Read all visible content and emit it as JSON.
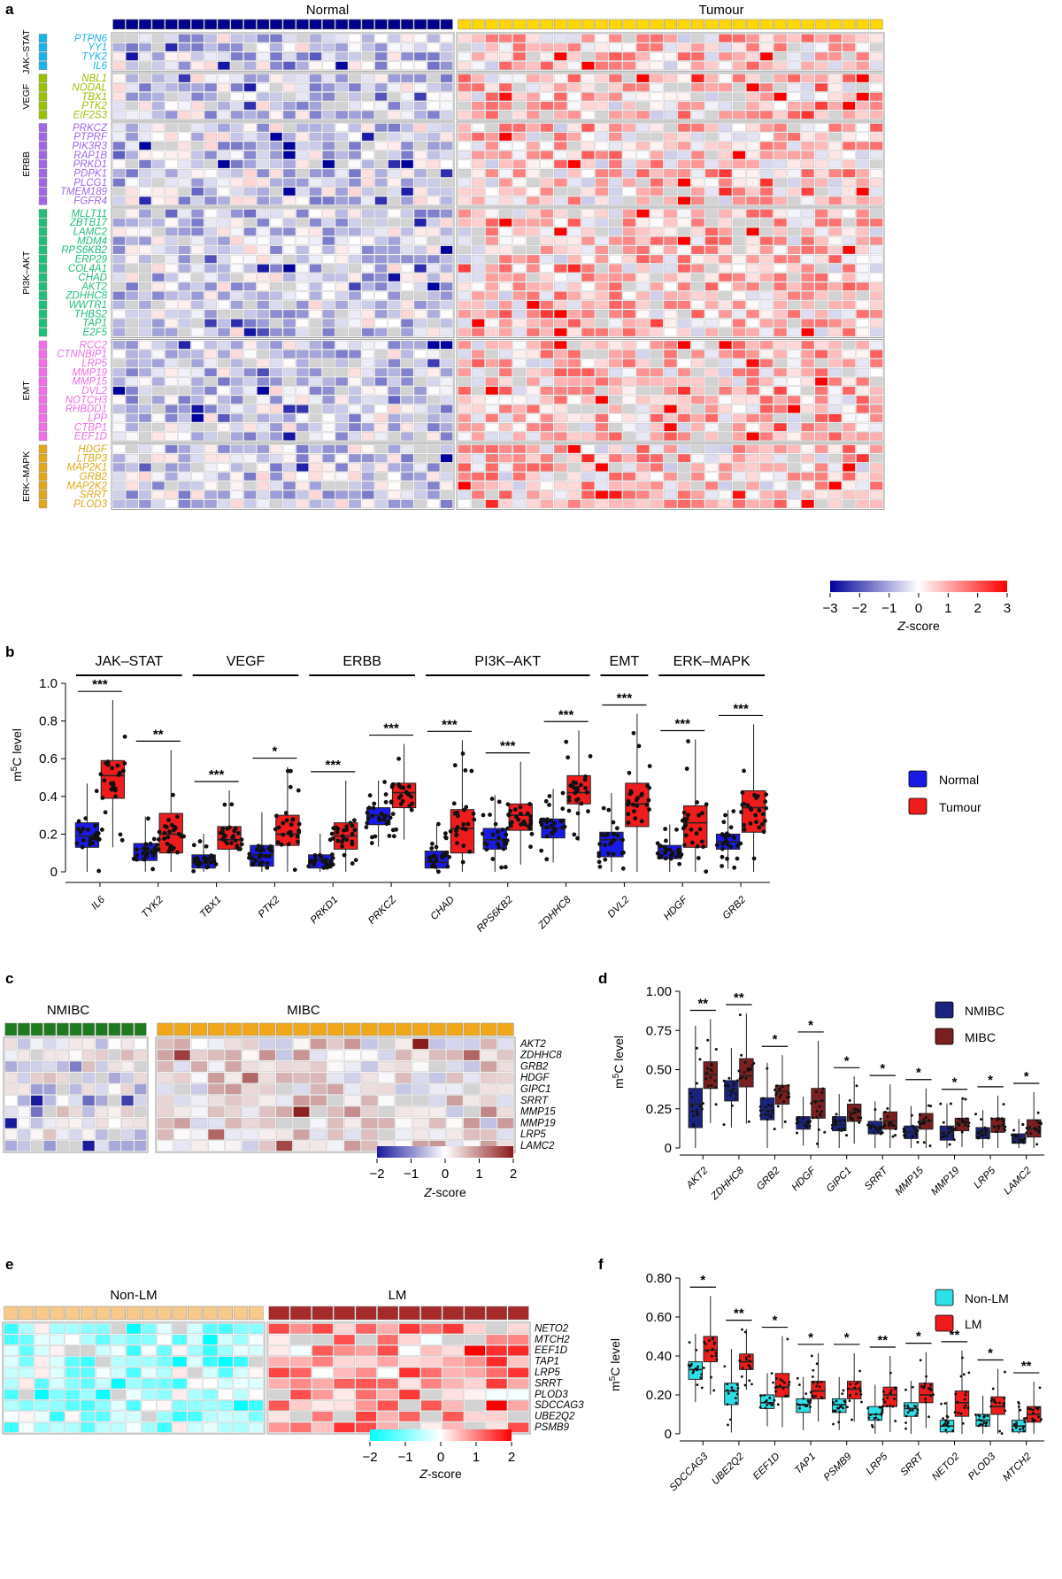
{
  "panels": {
    "a": {
      "letter": "a",
      "columns_left": "Normal",
      "columns_right": "Tumour",
      "n_left": 26,
      "n_right": 31,
      "left_bar_color": "#00008b",
      "right_bar_color": "#ffd700",
      "groups": [
        {
          "name": "JAK–STAT",
          "color": "#1ab2e8",
          "genes": [
            "PTPN6",
            "YY1",
            "TYK2",
            "IL6"
          ]
        },
        {
          "name": "VEGF",
          "color": "#9ac100",
          "genes": [
            "NBL1",
            "NODAL",
            "TBX1",
            "PTK2",
            "EIF2S3"
          ]
        },
        {
          "name": "ERBB",
          "color": "#a066e8",
          "genes": [
            "PRKCZ",
            "PTPRF",
            "PIK3R3",
            "RAP1B",
            "PRKD1",
            "PDPK1",
            "PLCG1",
            "TMEM189",
            "FGFR4"
          ]
        },
        {
          "name": "PI3K–AKT",
          "color": "#1fbf7a",
          "genes": [
            "MLLT11",
            "ZBTB17",
            "LAMC2",
            "MDM4",
            "RPS6KB2",
            "ERP29",
            "COL4A1",
            "CHAD",
            "AKT2",
            "ZDHHC8",
            "WWTR1",
            "THBS2",
            "TAP1",
            "E2F5"
          ]
        },
        {
          "name": "EMT",
          "color": "#ee6ee6",
          "genes": [
            "RCC2",
            "CTNNBIP1",
            "LRP5",
            "MMP19",
            "MMP15",
            "DVL2",
            "NOTCH3",
            "RHBDD1",
            "LPP",
            "CTBP1",
            "EEF1D"
          ]
        },
        {
          "name": "ERK–MAPK",
          "color": "#e0a81a",
          "genes": [
            "HDGF",
            "LTBP3",
            "MAP2K1",
            "GRB2",
            "MAP2K2",
            "SRRT",
            "PLOD3"
          ]
        }
      ],
      "legend": {
        "min": "−3",
        "ticks": [
          "−3",
          "−2",
          "−1",
          "0",
          "1",
          "2",
          "3"
        ],
        "title_italic": "Z",
        "title_rest": "-score",
        "low_color": "#00009c",
        "mid_color": "#ffffff",
        "high_color": "#ff0000"
      }
    },
    "b": {
      "letter": "b",
      "ylabel_base": "m",
      "ylabel_sup": "5",
      "ylabel_rest": "C level",
      "yticks": [
        "0",
        "0.2",
        "0.4",
        "0.6",
        "0.8",
        "1.0"
      ],
      "ylim": [
        0,
        1.0
      ],
      "pathways": [
        {
          "name": "JAK–STAT",
          "span": [
            0,
            1
          ]
        },
        {
          "name": "VEGF",
          "span": [
            2,
            3
          ]
        },
        {
          "name": "ERBB",
          "span": [
            4,
            5
          ]
        },
        {
          "name": "PI3K–AKT",
          "span": [
            6,
            8
          ]
        },
        {
          "name": "EMT",
          "span": [
            9,
            9
          ]
        },
        {
          "name": "ERK–MAPK",
          "span": [
            10,
            11
          ]
        }
      ],
      "legend": [
        {
          "label": "Normal",
          "color": "#1a1ae6"
        },
        {
          "label": "Tumour",
          "color": "#ee1c1c"
        }
      ],
      "chart_data": {
        "type": "box",
        "categories": [
          "IL6",
          "TYK2",
          "TBX1",
          "PTK2",
          "PRKD1",
          "PRKCZ",
          "CHAD",
          "RPS6KB2",
          "ZDHHC8",
          "DVL2",
          "HDGF",
          "GRB2"
        ],
        "series": [
          {
            "name": "Normal",
            "boxes": [
              [
                0.13,
                0.19,
                0.26
              ],
              [
                0.06,
                0.12,
                0.15
              ],
              [
                0.02,
                0.05,
                0.09
              ],
              [
                0.03,
                0.09,
                0.14
              ],
              [
                0.02,
                0.06,
                0.09
              ],
              [
                0.25,
                0.3,
                0.34
              ],
              [
                0.02,
                0.05,
                0.11
              ],
              [
                0.12,
                0.17,
                0.23
              ],
              [
                0.18,
                0.23,
                0.28
              ],
              [
                0.08,
                0.17,
                0.21
              ],
              [
                0.07,
                0.11,
                0.14
              ],
              [
                0.12,
                0.16,
                0.2
              ]
            ]
          },
          {
            "name": "Tumour",
            "boxes": [
              [
                0.39,
                0.51,
                0.59
              ],
              [
                0.1,
                0.2,
                0.31
              ],
              [
                0.12,
                0.17,
                0.24
              ],
              [
                0.14,
                0.2,
                0.3
              ],
              [
                0.12,
                0.19,
                0.26
              ],
              [
                0.34,
                0.42,
                0.47
              ],
              [
                0.1,
                0.23,
                0.33
              ],
              [
                0.22,
                0.3,
                0.36
              ],
              [
                0.36,
                0.42,
                0.51
              ],
              [
                0.24,
                0.36,
                0.47
              ],
              [
                0.13,
                0.26,
                0.35
              ],
              [
                0.21,
                0.34,
                0.43
              ]
            ]
          }
        ],
        "significance": [
          "***",
          "**",
          "***",
          "*",
          "***",
          "***",
          "***",
          "***",
          "***",
          "***",
          "***",
          "***"
        ]
      }
    },
    "c": {
      "letter": "c",
      "columns_left": "NMIBC",
      "columns_right": "MIBC",
      "n_left": 11,
      "n_right": 21,
      "left_bar_color": "#1e7a1e",
      "right_bar_color": "#f0a81a",
      "genes": [
        "AKT2",
        "ZDHHC8",
        "GRB2",
        "HDGF",
        "GIPC1",
        "SRRT",
        "MMP15",
        "MMP19",
        "LRP5",
        "LAMC2"
      ],
      "legend": {
        "ticks": [
          "−2",
          "−1",
          "0",
          "1",
          "2"
        ],
        "title_italic": "Z",
        "title_rest": "-score",
        "low_color": "#1a1a9c",
        "mid_color": "#ffffff",
        "high_color": "#8b1a1a"
      }
    },
    "d": {
      "letter": "d",
      "ylabel_base": "m",
      "ylabel_sup": "5",
      "ylabel_rest": "C level",
      "yticks": [
        "0",
        "0.25",
        "0.50",
        "0.75",
        "1.00"
      ],
      "ylim": [
        0,
        1.0
      ],
      "legend": [
        {
          "label": "NMIBC",
          "color": "#1a237e"
        },
        {
          "label": "MIBC",
          "color": "#7a1f1f"
        }
      ],
      "chart_data": {
        "type": "box",
        "categories": [
          "AKT2",
          "ZDHHC8",
          "GRB2",
          "HDGF",
          "GIPC1",
          "SRRT",
          "MMP15",
          "MMP19",
          "LRP5",
          "LAMC2"
        ],
        "series": [
          {
            "name": "NMIBC",
            "boxes": [
              [
                0.13,
                0.28,
                0.38
              ],
              [
                0.3,
                0.37,
                0.43
              ],
              [
                0.18,
                0.24,
                0.32
              ],
              [
                0.12,
                0.16,
                0.2
              ],
              [
                0.11,
                0.15,
                0.2
              ],
              [
                0.09,
                0.13,
                0.17
              ],
              [
                0.06,
                0.1,
                0.14
              ],
              [
                0.05,
                0.1,
                0.14
              ],
              [
                0.06,
                0.1,
                0.13
              ],
              [
                0.03,
                0.06,
                0.09
              ]
            ]
          },
          {
            "name": "MIBC",
            "boxes": [
              [
                0.38,
                0.47,
                0.55
              ],
              [
                0.39,
                0.46,
                0.57
              ],
              [
                0.28,
                0.36,
                0.4
              ],
              [
                0.19,
                0.3,
                0.38
              ],
              [
                0.17,
                0.23,
                0.28
              ],
              [
                0.12,
                0.17,
                0.23
              ],
              [
                0.12,
                0.17,
                0.22
              ],
              [
                0.11,
                0.16,
                0.19
              ],
              [
                0.1,
                0.14,
                0.19
              ],
              [
                0.07,
                0.12,
                0.18
              ]
            ]
          }
        ],
        "significance": [
          "**",
          "**",
          "*",
          "*",
          "*",
          "*",
          "*",
          "*",
          "*",
          "*"
        ]
      }
    },
    "e": {
      "letter": "e",
      "columns_left": "Non-LM",
      "columns_right": "LM",
      "n_left": 17,
      "n_right": 12,
      "left_bar_color": "#f7c98a",
      "right_bar_color": "#a52a2a",
      "genes": [
        "NETO2",
        "MTCH2",
        "EEF1D",
        "TAP1",
        "LRP5",
        "SRRT",
        "PLOD3",
        "SDCCAG3",
        "UBE2Q2",
        "PSMB9"
      ],
      "legend": {
        "ticks": [
          "−2",
          "−1",
          "0",
          "1",
          "2"
        ],
        "title_italic": "Z",
        "title_rest": "-score",
        "low_color": "#00ffff",
        "mid_color": "#ffffff",
        "high_color": "#ff0000"
      }
    },
    "f": {
      "letter": "f",
      "ylabel_base": "m",
      "ylabel_sup": "5",
      "ylabel_rest": "C level",
      "yticks": [
        "0",
        "0.20",
        "0.40",
        "0.60",
        "0.80"
      ],
      "ylim": [
        0,
        0.8
      ],
      "legend": [
        {
          "label": "Non-LM",
          "color": "#2de0e8"
        },
        {
          "label": "LM",
          "color": "#ee1c1c"
        }
      ],
      "chart_data": {
        "type": "box",
        "categories": [
          "SDCCAG3",
          "UBE2Q2",
          "EEF1D",
          "TAP1",
          "PSMB9",
          "LRP5",
          "SRRT",
          "NETO2",
          "PLOD3",
          "MTCH2"
        ],
        "series": [
          {
            "name": "Non-LM",
            "boxes": [
              [
                0.28,
                0.33,
                0.37
              ],
              [
                0.15,
                0.22,
                0.26
              ],
              [
                0.13,
                0.16,
                0.2
              ],
              [
                0.11,
                0.15,
                0.18
              ],
              [
                0.11,
                0.15,
                0.18
              ],
              [
                0.07,
                0.1,
                0.14
              ],
              [
                0.09,
                0.13,
                0.16
              ],
              [
                0.01,
                0.04,
                0.07
              ],
              [
                0.04,
                0.07,
                0.1
              ],
              [
                0.01,
                0.04,
                0.07
              ]
            ]
          },
          {
            "name": "LM",
            "boxes": [
              [
                0.37,
                0.43,
                0.5
              ],
              [
                0.33,
                0.37,
                0.41
              ],
              [
                0.19,
                0.24,
                0.31
              ],
              [
                0.18,
                0.22,
                0.27
              ],
              [
                0.18,
                0.23,
                0.27
              ],
              [
                0.14,
                0.2,
                0.24
              ],
              [
                0.16,
                0.2,
                0.26
              ],
              [
                0.09,
                0.16,
                0.22
              ],
              [
                0.1,
                0.14,
                0.19
              ],
              [
                0.06,
                0.1,
                0.14
              ]
            ]
          }
        ],
        "significance": [
          "*",
          "**",
          "*",
          "*",
          "*",
          "**",
          "*",
          "**",
          "*",
          "**"
        ]
      }
    }
  }
}
